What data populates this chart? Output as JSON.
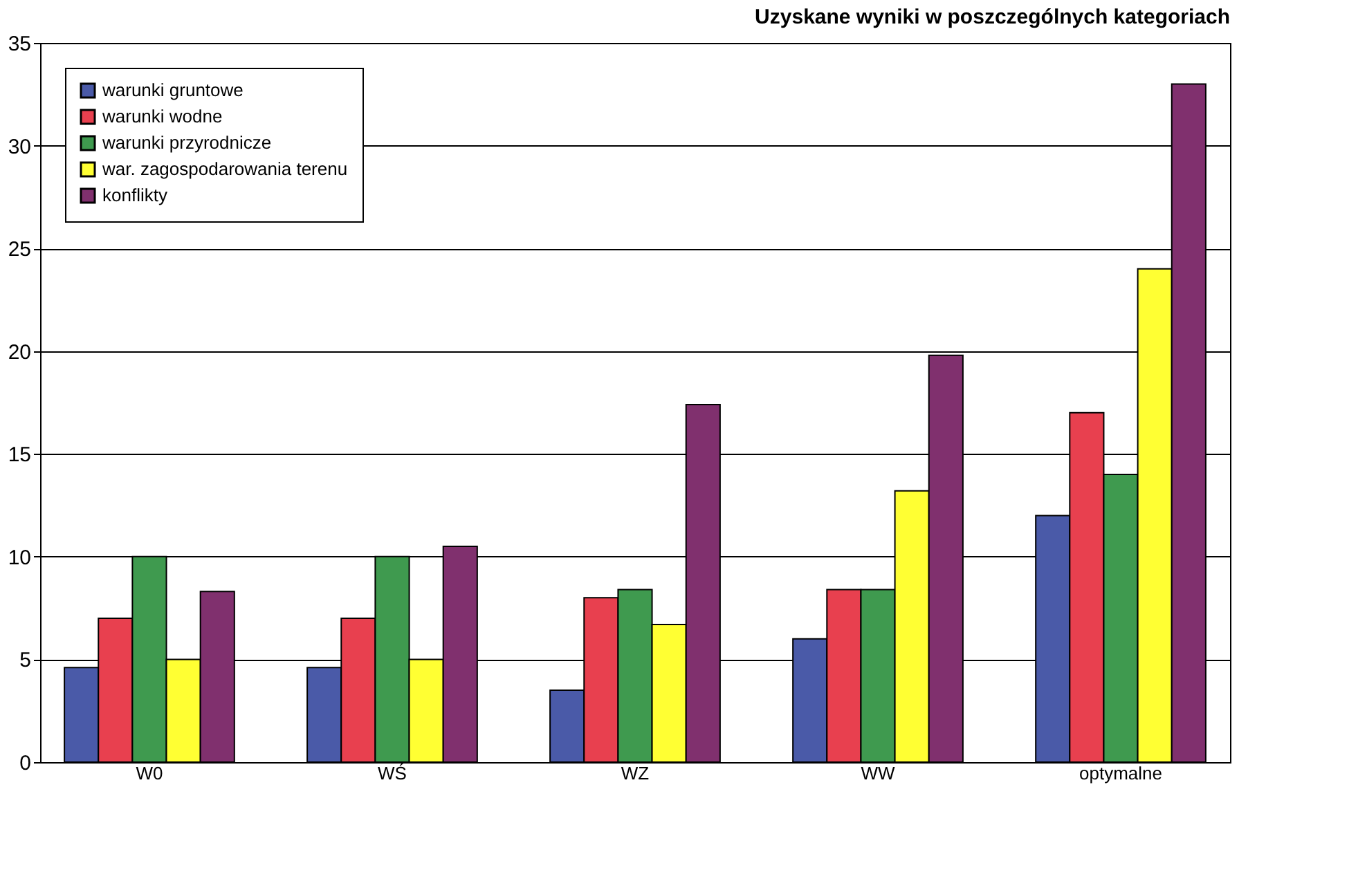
{
  "chart_data": {
    "type": "bar",
    "title": "Uzyskane wyniki w poszczególnych kategoriach",
    "categories": [
      "W0",
      "WŚ",
      "WZ",
      "WW",
      "optymalne"
    ],
    "series": [
      {
        "name": "warunki gruntowe",
        "color": "#4a5aa8",
        "values": [
          4.6,
          4.6,
          3.5,
          6,
          12
        ]
      },
      {
        "name": "warunki wodne",
        "color": "#e8404f",
        "values": [
          7,
          7,
          8,
          8.4,
          17
        ]
      },
      {
        "name": "warunki przyrodnicze",
        "color": "#3f9a4f",
        "values": [
          10,
          10,
          8.4,
          8.4,
          14
        ]
      },
      {
        "name": "war. zagospodarowania terenu",
        "color": "#ffff33",
        "values": [
          5,
          5,
          6.7,
          13.2,
          24
        ]
      },
      {
        "name": "konflikty",
        "color": "#80306e",
        "values": [
          8.3,
          10.5,
          17.4,
          19.8,
          33
        ]
      }
    ],
    "ylim": [
      0,
      35
    ],
    "yticks": [
      0,
      5,
      10,
      15,
      20,
      25,
      30,
      35
    ],
    "grid": "y",
    "legend": "top left"
  }
}
